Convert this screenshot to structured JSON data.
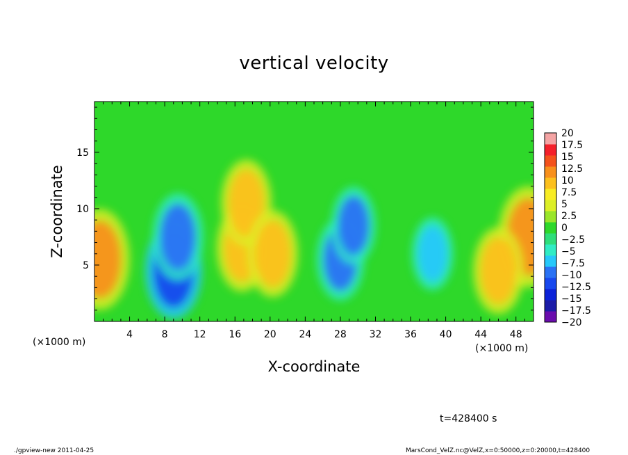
{
  "chart_data": {
    "type": "heatmap",
    "title": "vertical velocity",
    "xlabel": "X-coordinate",
    "ylabel": "Z-coordinate",
    "x_unit_label": "(×1000 m)",
    "xlim": [
      0,
      50
    ],
    "ylim": [
      0,
      19.5
    ],
    "xticks": [
      4,
      8,
      12,
      16,
      20,
      24,
      28,
      32,
      36,
      40,
      44,
      48
    ],
    "yticks": [
      5,
      10,
      15
    ],
    "colorbar": {
      "levels": [
        -20,
        -17.5,
        -15,
        -12.5,
        -10,
        -7.5,
        -5,
        -2.5,
        0,
        2.5,
        5,
        7.5,
        10,
        12.5,
        15,
        17.5,
        20
      ],
      "labels": [
        "20",
        "17.5",
        "15",
        "12.5",
        "10",
        "7.5",
        "5",
        "2.5",
        "0",
        "−2.5",
        "−5",
        "−7.5",
        "−10",
        "−12.5",
        "−15",
        "−17.5",
        "−20"
      ],
      "colors": [
        "#6a0dad",
        "#1c1ca8",
        "#0b22d8",
        "#1848ee",
        "#2a72f4",
        "#26c8fa",
        "#30ecc4",
        "#2ede7a",
        "#2ed82a",
        "#9ae62a",
        "#dcef26",
        "#f8ec24",
        "#fcc01e",
        "#f8901c",
        "#f4521c",
        "#f4202a",
        "#f4a4a4"
      ]
    },
    "features": [
      {
        "name": "updraft",
        "x": 0.6,
        "z": 5.5,
        "w": 13
      },
      {
        "name": "updraft",
        "x": 49.4,
        "z": 7.5,
        "w": 13
      },
      {
        "name": "updraft",
        "x": 16.8,
        "z": 6.5,
        "w": 10
      },
      {
        "name": "updraft",
        "x": 17.3,
        "z": 10.5,
        "w": 10
      },
      {
        "name": "updraft",
        "x": 20.3,
        "z": 6.0,
        "w": 10
      },
      {
        "name": "updraft",
        "x": 46.0,
        "z": 4.5,
        "w": 10
      },
      {
        "name": "downdraft",
        "x": 9.0,
        "z": 4.5,
        "w": -12
      },
      {
        "name": "downdraft",
        "x": 9.5,
        "z": 7.5,
        "w": -10
      },
      {
        "name": "downdraft",
        "x": 28.0,
        "z": 5.5,
        "w": -9
      },
      {
        "name": "downdraft",
        "x": 29.5,
        "z": 8.5,
        "w": -8
      },
      {
        "name": "downdraft",
        "x": 38.5,
        "z": 6.0,
        "w": -7
      }
    ]
  },
  "time_label": "t=428400 s",
  "footer": {
    "left": "./gpview-new   2011-04-25",
    "right": "MarsCond_VelZ.nc@VelZ,x=0:50000,z=0:20000,t=428400"
  }
}
